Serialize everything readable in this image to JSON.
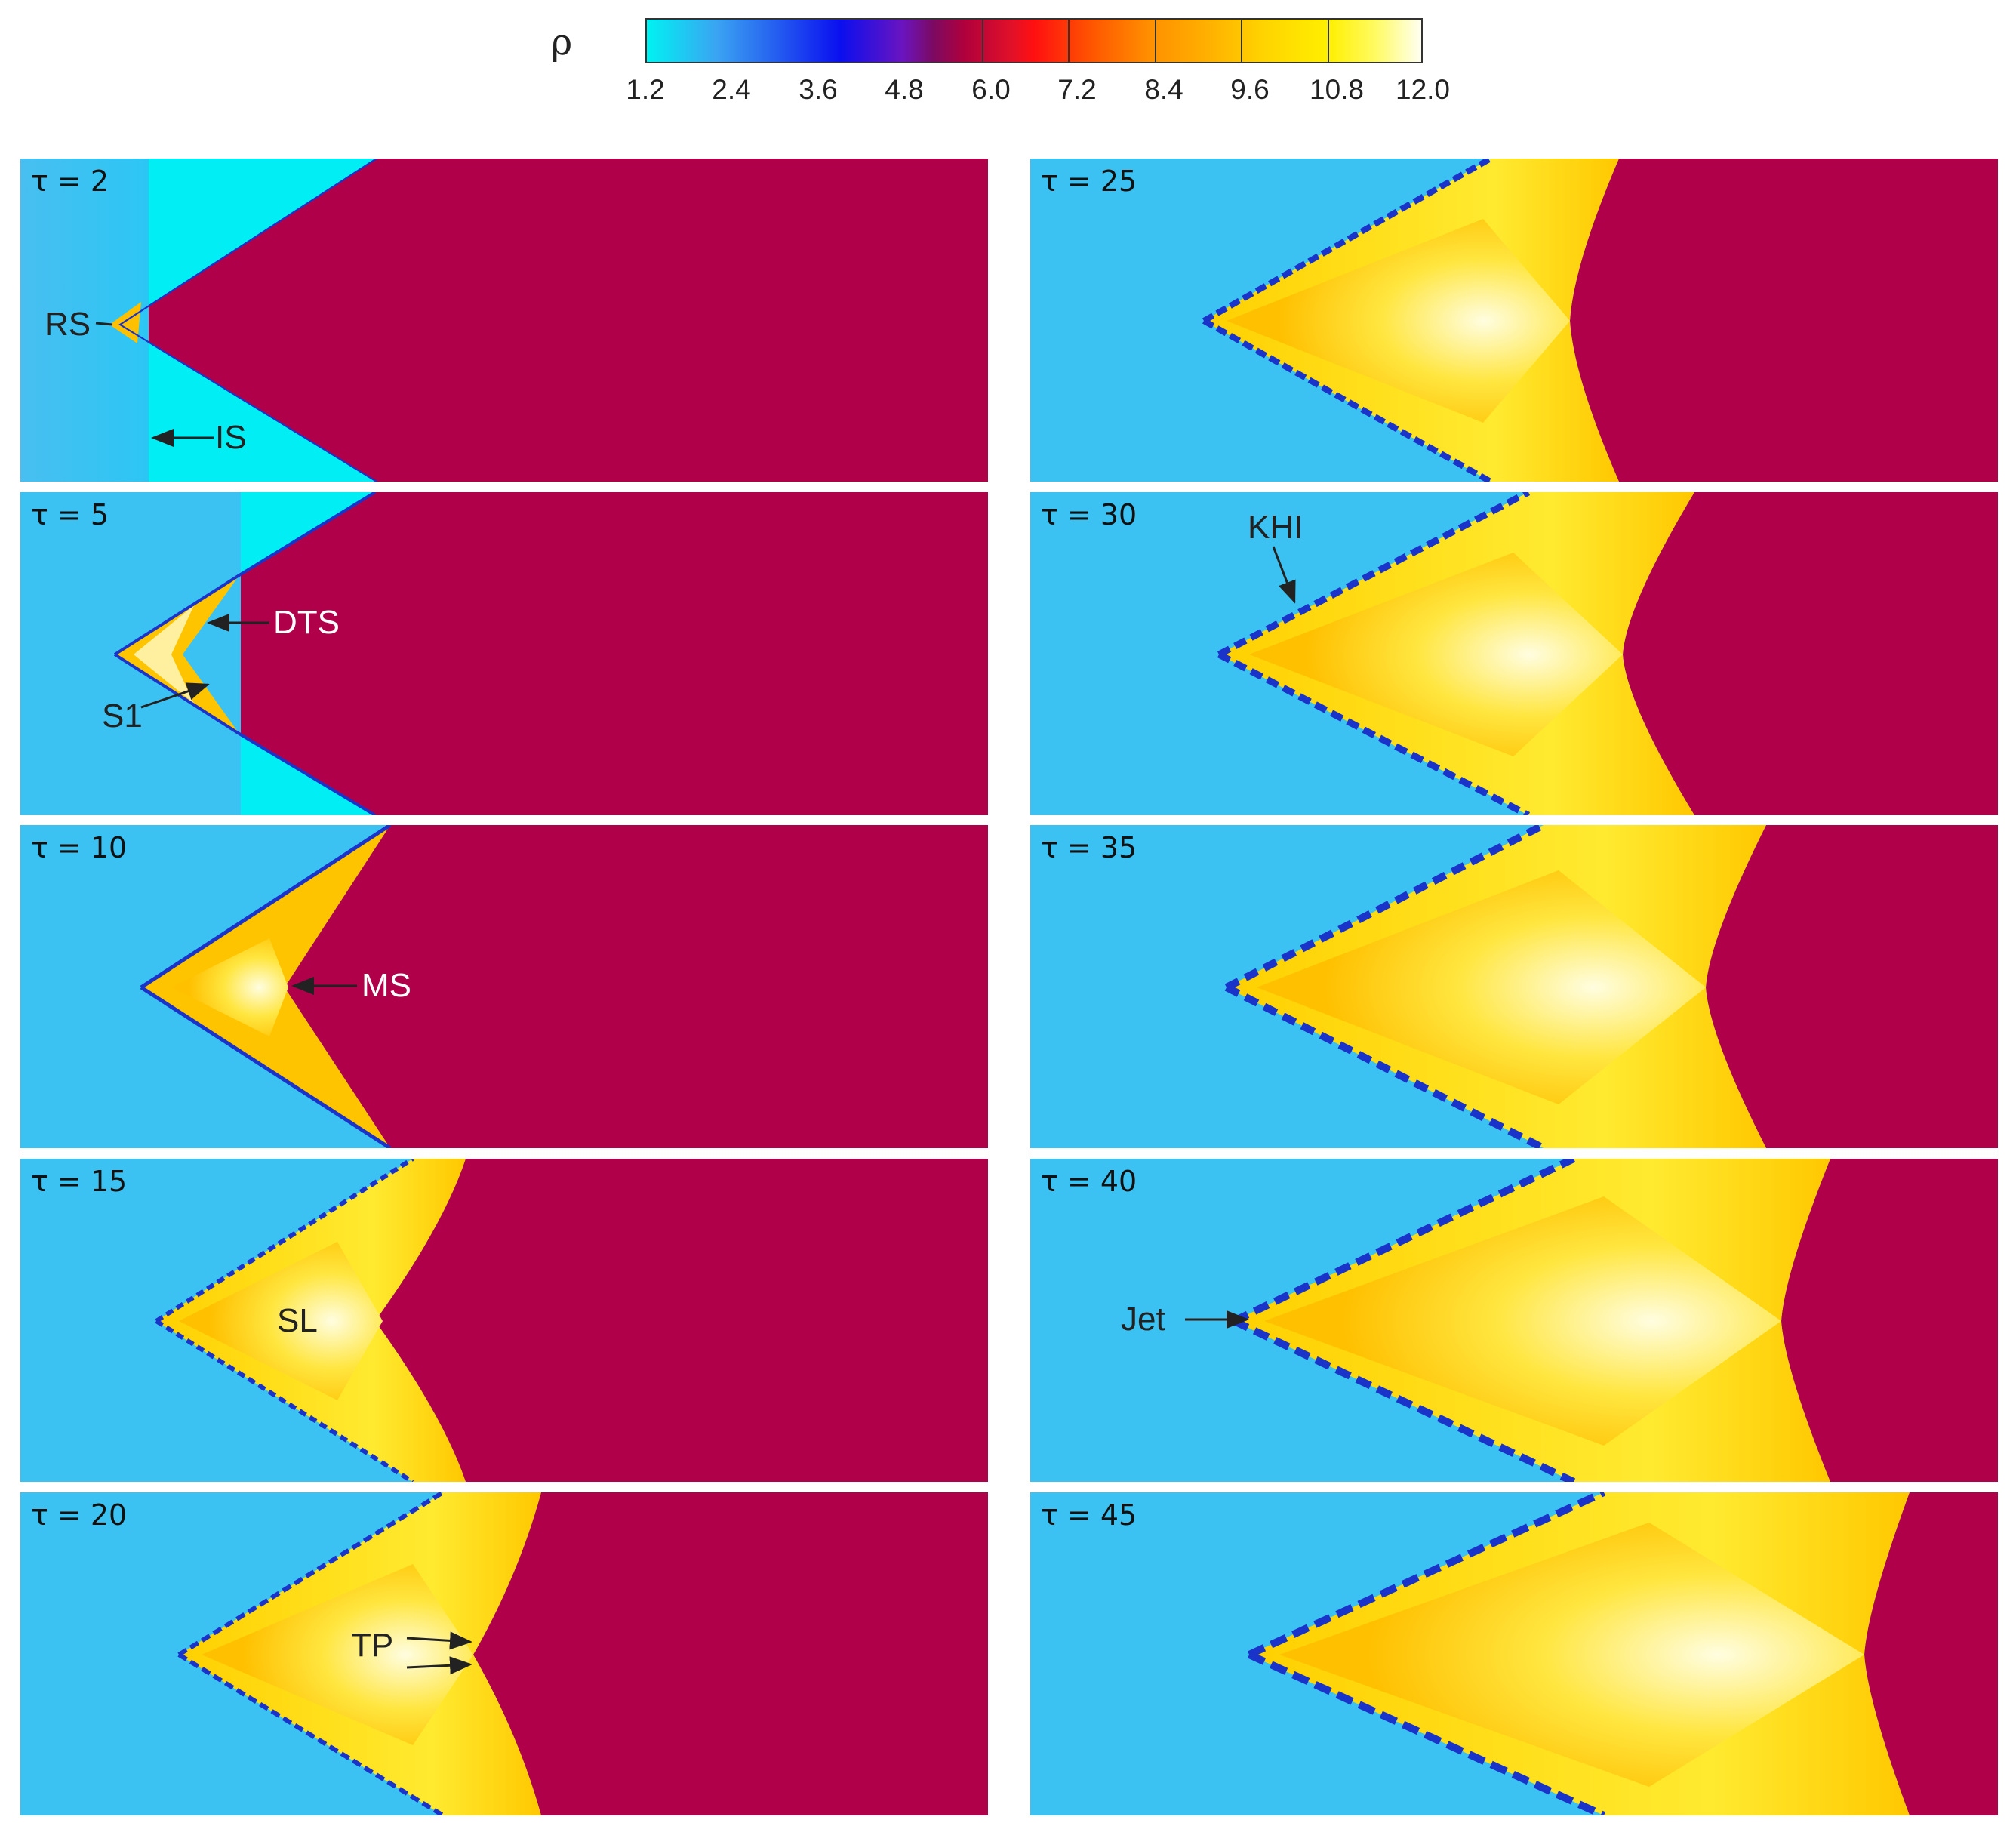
{
  "colorbar": {
    "symbol": "ρ",
    "ticks": [
      "1.2",
      "2.4",
      "3.6",
      "4.8",
      "6.0",
      "7.2",
      "8.4",
      "9.6",
      "10.8",
      "12.0"
    ]
  },
  "panels": [
    {
      "tau": "τ = 2",
      "labels": [
        "RS",
        "IS"
      ]
    },
    {
      "tau": "τ = 5",
      "labels": [
        "DTS",
        "S1"
      ]
    },
    {
      "tau": "τ = 10",
      "labels": [
        "MS"
      ]
    },
    {
      "tau": "τ = 15",
      "labels": [
        "SL"
      ]
    },
    {
      "tau": "τ = 20",
      "labels": [
        "TP"
      ]
    },
    {
      "tau": "τ = 25",
      "labels": []
    },
    {
      "tau": "τ = 30",
      "labels": [
        "KHI"
      ]
    },
    {
      "tau": "τ = 35",
      "labels": []
    },
    {
      "tau": "τ = 40",
      "labels": [
        "Jet"
      ]
    },
    {
      "tau": "τ = 45",
      "labels": []
    }
  ],
  "colors": {
    "ambient": "#b0004a",
    "gas_light": "#3cc2f2",
    "gas_cyan": "#00f0f5",
    "shocked": "#ffc400",
    "bright": "#fff7a0",
    "interface": "#1a33c8"
  }
}
